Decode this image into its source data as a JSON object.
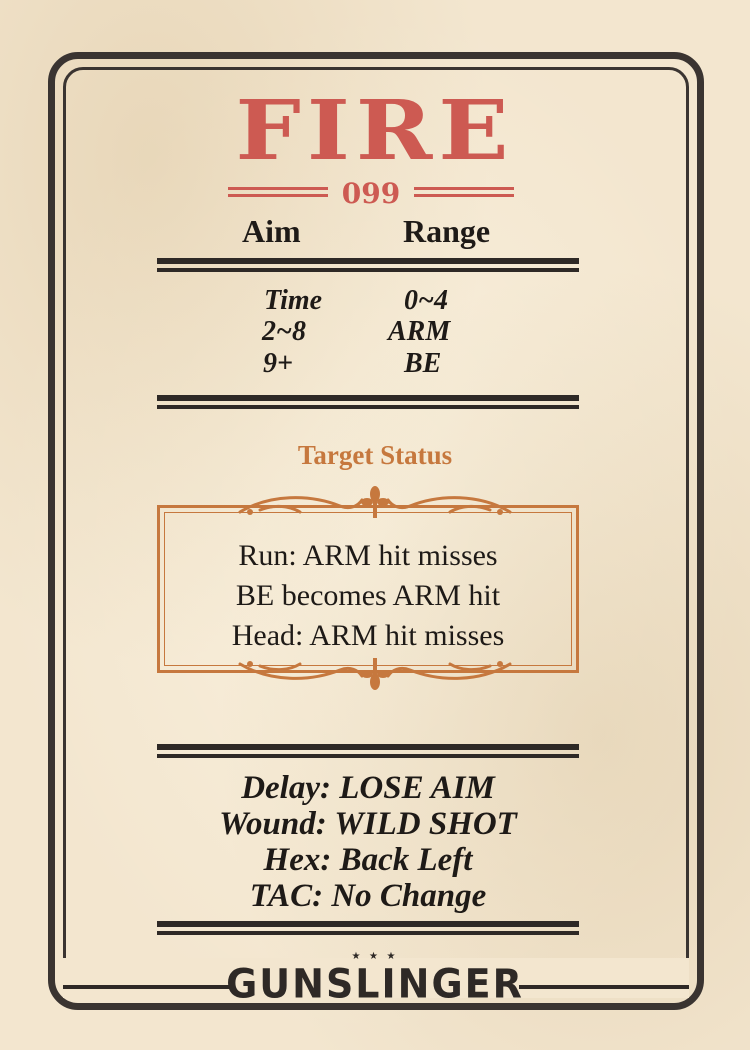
{
  "card": {
    "title": "FIRE",
    "number": "099",
    "columns": {
      "aim": "Aim",
      "range": "Range"
    },
    "range_table": [
      {
        "aim": "Time",
        "range": "0~4"
      },
      {
        "aim": "2~8",
        "range": "ARM"
      },
      {
        "aim": "9+",
        "range": "BE"
      }
    ],
    "target_status_label": "Target Status",
    "target_status": [
      "Run: ARM hit misses",
      "BE becomes ARM hit",
      "Head: ARM hit misses"
    ],
    "effects": [
      "Delay: LOSE AIM",
      "Wound: WILD SHOT",
      "Hex: Back Left",
      "TAC: No Change"
    ],
    "brand": "GUNSLINGER",
    "brand_stars": "★ ★ ★"
  },
  "colors": {
    "title": "#cd5a52",
    "accent": "#c6783e",
    "ink": "#2e2926",
    "paper": "#f3e6cf"
  }
}
